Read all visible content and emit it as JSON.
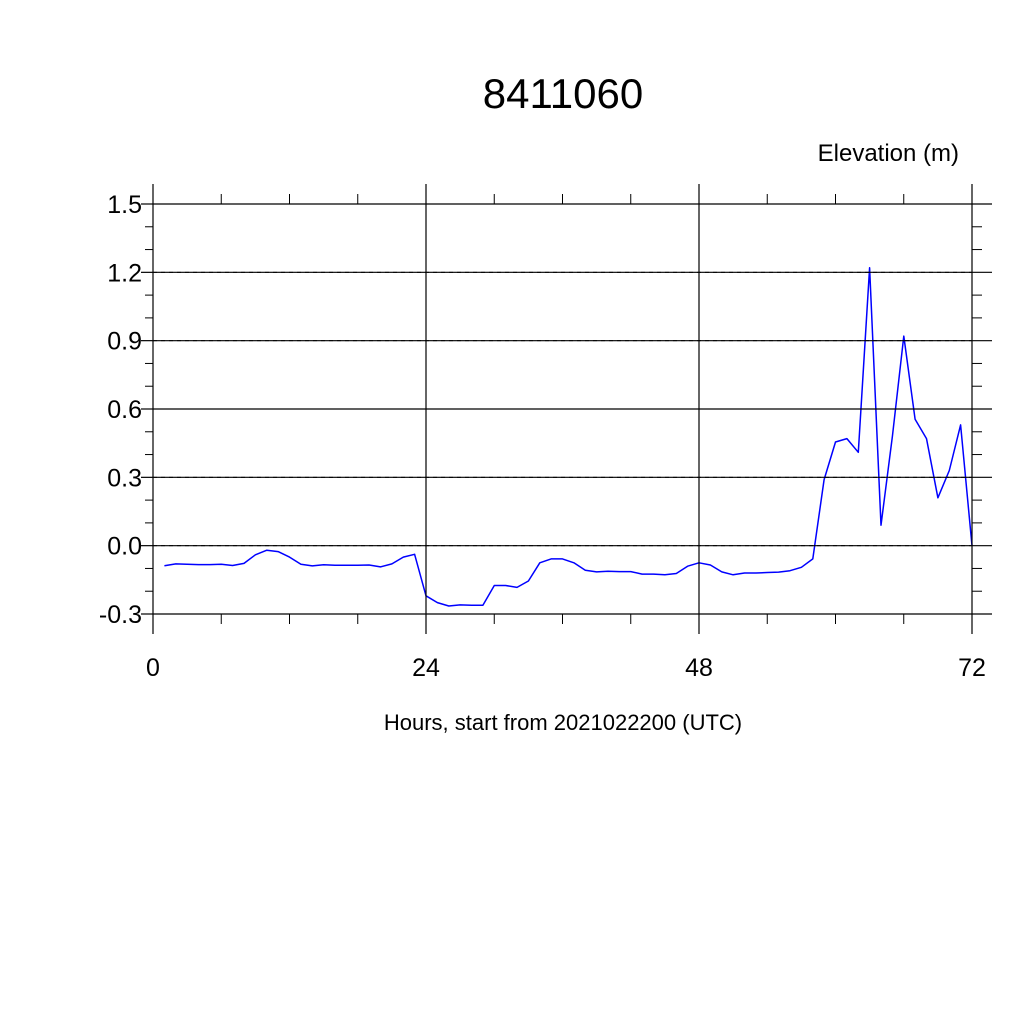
{
  "chart_data": {
    "type": "line",
    "title": "8411060",
    "subtitle": "Elevation (m)",
    "xlabel": "Hours, start from 2021022200 (UTC)",
    "ylabel": "",
    "xlim": [
      0,
      72
    ],
    "ylim": [
      -0.3,
      1.5
    ],
    "xticks": [
      0,
      24,
      48,
      72
    ],
    "xtick_labels": [
      "0",
      "24",
      "48",
      "72"
    ],
    "yticks": [
      -0.3,
      0.0,
      0.3,
      0.6,
      0.9,
      1.2,
      1.5
    ],
    "ytick_labels": [
      "-0.3",
      "0.0",
      "0.3",
      "0.6",
      "0.9",
      "1.2",
      "1.5"
    ],
    "grid": true,
    "line_color": "#0000ff",
    "series": [
      {
        "x": [
          1,
          2,
          3,
          4,
          5,
          6,
          7,
          8,
          9,
          10,
          11,
          12,
          13,
          14,
          15,
          16,
          17,
          18,
          19,
          20,
          21,
          22,
          23,
          24,
          25,
          26,
          27,
          28,
          29,
          30,
          31,
          32,
          33,
          34,
          35,
          36,
          37,
          38,
          39,
          40,
          41,
          42,
          43,
          44,
          45,
          46,
          47,
          48,
          49,
          50,
          51,
          52,
          53,
          54,
          55,
          56,
          57,
          58,
          59,
          60,
          61,
          62,
          63,
          64,
          65,
          66,
          67,
          68,
          69,
          70,
          71,
          72
        ],
        "values": [
          -0.088,
          -0.08,
          -0.082,
          -0.083,
          -0.083,
          -0.082,
          -0.087,
          -0.078,
          -0.04,
          -0.02,
          -0.026,
          -0.05,
          -0.082,
          -0.089,
          -0.084,
          -0.086,
          -0.086,
          -0.086,
          -0.085,
          -0.093,
          -0.08,
          -0.05,
          -0.038,
          -0.22,
          -0.25,
          -0.265,
          -0.26,
          -0.262,
          -0.262,
          -0.175,
          -0.175,
          -0.183,
          -0.155,
          -0.075,
          -0.058,
          -0.058,
          -0.075,
          -0.108,
          -0.115,
          -0.112,
          -0.114,
          -0.114,
          -0.125,
          -0.125,
          -0.128,
          -0.122,
          -0.09,
          -0.075,
          -0.085,
          -0.115,
          -0.128,
          -0.12,
          -0.12,
          -0.118,
          -0.116,
          -0.11,
          -0.095,
          -0.058,
          0.29,
          0.455,
          0.47,
          0.41,
          1.22,
          0.09,
          0.48,
          0.92,
          0.555,
          0.47,
          0.21,
          0.33,
          0.53,
          0.0
        ]
      }
    ]
  }
}
